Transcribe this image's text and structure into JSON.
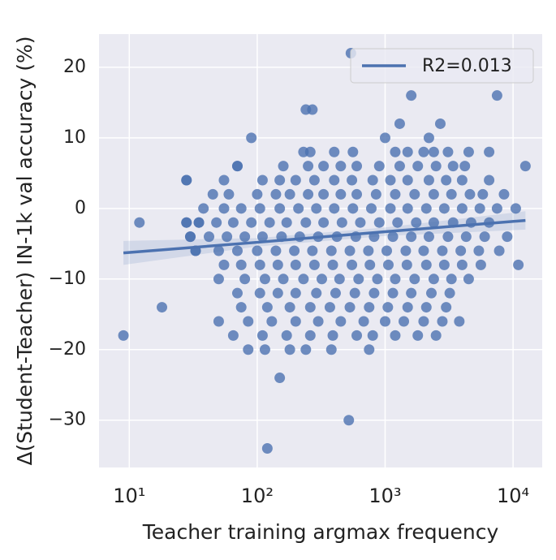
{
  "chart_data": {
    "type": "scatter",
    "xlabel": "Teacher training argmax frequency",
    "ylabel": "Δ(Student-Teacher) IN-1k val accuracy (%)",
    "color": "#4c72b0",
    "xscale": "log",
    "grid": true,
    "legend": "upper right",
    "xlim": [
      5.8,
      16900
    ],
    "ylim": [
      -36.7,
      24.7
    ],
    "xticks": [
      {
        "value": 10,
        "label": "10¹"
      },
      {
        "value": 100,
        "label": "10²"
      },
      {
        "value": 1000,
        "label": "10³"
      },
      {
        "value": 10000,
        "label": "10⁴"
      }
    ],
    "yticks": [
      {
        "value": -30,
        "label": "−30"
      },
      {
        "value": -20,
        "label": "−20"
      },
      {
        "value": -10,
        "label": "−10"
      },
      0,
      10,
      20
    ],
    "x": [
      9,
      12,
      18,
      28,
      28,
      30,
      33,
      35,
      120,
      150,
      520,
      540,
      1600,
      7500,
      12500,
      11000,
      90,
      70,
      240,
      270,
      1300,
      2700,
      2200,
      1000,
      230,
      260,
      400,
      560,
      1200,
      1500,
      2000,
      2400,
      3100,
      4500,
      6500,
      70,
      160,
      250,
      330,
      450,
      600,
      900,
      1300,
      1800,
      2500,
      3400,
      4200,
      28,
      55,
      110,
      150,
      200,
      280,
      400,
      550,
      800,
      1100,
      1500,
      2200,
      3000,
      4000,
      6500,
      45,
      60,
      100,
      140,
      180,
      250,
      330,
      450,
      600,
      850,
      1200,
      1700,
      2400,
      3300,
      4600,
      5800,
      8500,
      38,
      55,
      75,
      105,
      150,
      210,
      290,
      400,
      560,
      780,
      1100,
      1500,
      2100,
      2900,
      4000,
      5500,
      7500,
      10500,
      28,
      35,
      48,
      65,
      90,
      125,
      170,
      240,
      330,
      460,
      640,
      900,
      1250,
      1750,
      2400,
      3400,
      4700,
      6500,
      30,
      42,
      58,
      80,
      110,
      155,
      215,
      300,
      420,
      590,
      820,
      1150,
      1600,
      2200,
      3100,
      4300,
      6000,
      9000,
      33,
      50,
      70,
      100,
      140,
      195,
      270,
      380,
      530,
      740,
      1030,
      1450,
      2000,
      2800,
      3900,
      5400,
      7800,
      55,
      75,
      105,
      145,
      200,
      280,
      390,
      550,
      760,
      1060,
      1480,
      2100,
      2900,
      4000,
      5600,
      50,
      80,
      115,
      160,
      230,
      320,
      440,
      620,
      870,
      1200,
      1700,
      2400,
      3300,
      4500,
      70,
      105,
      145,
      200,
      290,
      410,
      580,
      820,
      1150,
      1600,
      2300,
      3200,
      75,
      120,
      180,
      260,
      370,
      530,
      750,
      1050,
      1500,
      2100,
      3000,
      50,
      85,
      130,
      200,
      300,
      450,
      680,
      1000,
      1400,
      2000,
      2800,
      3800,
      65,
      110,
      170,
      260,
      390,
      600,
      800,
      1200,
      1800,
      2500,
      85,
      115,
      180,
      240,
      380,
      750
    ],
    "values": [
      -18,
      -2,
      -14,
      4,
      -2,
      -4,
      -6,
      -2,
      -34,
      -24,
      -30,
      22,
      16,
      16,
      6,
      -8,
      10,
      6,
      14,
      14,
      12,
      12,
      10,
      10,
      8,
      8,
      8,
      8,
      8,
      8,
      8,
      8,
      8,
      8,
      8,
      6,
      6,
      6,
      6,
      6,
      6,
      6,
      6,
      6,
      6,
      6,
      6,
      4,
      4,
      4,
      4,
      4,
      4,
      4,
      4,
      4,
      4,
      4,
      4,
      4,
      4,
      4,
      2,
      2,
      2,
      2,
      2,
      2,
      2,
      2,
      2,
      2,
      2,
      2,
      2,
      2,
      2,
      2,
      2,
      0,
      0,
      0,
      0,
      0,
      0,
      0,
      0,
      0,
      0,
      0,
      0,
      0,
      0,
      0,
      0,
      0,
      0,
      -2,
      -2,
      -2,
      -2,
      -2,
      -2,
      -2,
      -2,
      -2,
      -2,
      -2,
      -2,
      -2,
      -2,
      -2,
      -2,
      -2,
      -2,
      -4,
      -4,
      -4,
      -4,
      -4,
      -4,
      -4,
      -4,
      -4,
      -4,
      -4,
      -4,
      -4,
      -4,
      -4,
      -4,
      -4,
      -4,
      -6,
      -6,
      -6,
      -6,
      -6,
      -6,
      -6,
      -6,
      -6,
      -6,
      -6,
      -6,
      -6,
      -6,
      -6,
      -6,
      -6,
      -8,
      -8,
      -8,
      -8,
      -8,
      -8,
      -8,
      -8,
      -8,
      -8,
      -8,
      -8,
      -8,
      -8,
      -8,
      -10,
      -10,
      -10,
      -10,
      -10,
      -10,
      -10,
      -10,
      -10,
      -10,
      -10,
      -10,
      -10,
      -10,
      -12,
      -12,
      -12,
      -12,
      -12,
      -12,
      -12,
      -12,
      -12,
      -12,
      -12,
      -12,
      -14,
      -14,
      -14,
      -14,
      -14,
      -14,
      -14,
      -14,
      -14,
      -14,
      -14,
      -16,
      -16,
      -16,
      -16,
      -16,
      -16,
      -16,
      -16,
      -16,
      -16,
      -16,
      -16,
      -18,
      -18,
      -18,
      -18,
      -18,
      -18,
      -18,
      -18,
      -18,
      -18,
      -20,
      -20,
      -20,
      -20,
      -20,
      -20
    ],
    "regression": {
      "name": "R2=0.013",
      "color": "#4c72b0",
      "x": [
        9,
        100,
        1000,
        12500
      ],
      "values": [
        -6.3,
        -4.8,
        -3.3,
        -1.7
      ],
      "band_lower": [
        -8.0,
        -5.4,
        -3.9,
        -3.0
      ],
      "band_upper": [
        -4.6,
        -4.2,
        -2.7,
        -0.4
      ]
    }
  }
}
